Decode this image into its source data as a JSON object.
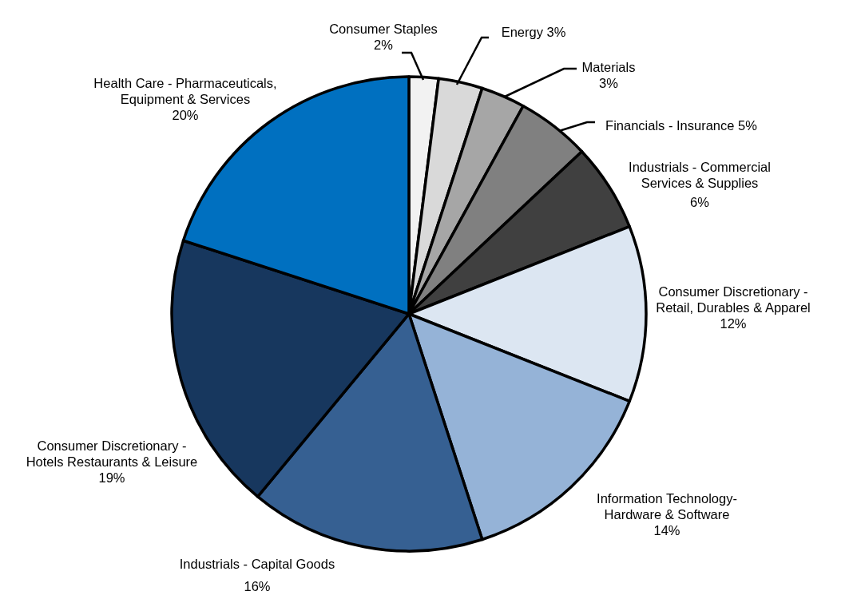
{
  "chart_data": {
    "type": "pie",
    "categories": [
      "Consumer Staples",
      "Energy",
      "Materials",
      "Financials - Insurance",
      "Industrials -  Commercial\nServices & Supplies",
      "Consumer Discretionary -\nRetail, Durables & Apparel",
      "Information Technology-\nHardware & Software",
      "Industrials - Capital Goods",
      "Consumer Discretionary -\nHotels Restaurants & Leisure",
      "Health Care  -  Pharmaceuticals,\nEquipment & Services"
    ],
    "values": [
      2,
      3,
      3,
      5,
      6,
      12,
      14,
      16,
      19,
      20
    ],
    "value_labels": [
      "2%",
      "3%",
      "3%",
      "5%",
      "6%",
      "12%",
      "14%",
      "16%",
      "19%",
      "20%"
    ],
    "colors": [
      "#f2f2f2",
      "#d9d9d9",
      "#a6a6a6",
      "#808080",
      "#404040",
      "#dce6f2",
      "#95b3d7",
      "#366092",
      "#17375e",
      "#0070c0"
    ]
  }
}
